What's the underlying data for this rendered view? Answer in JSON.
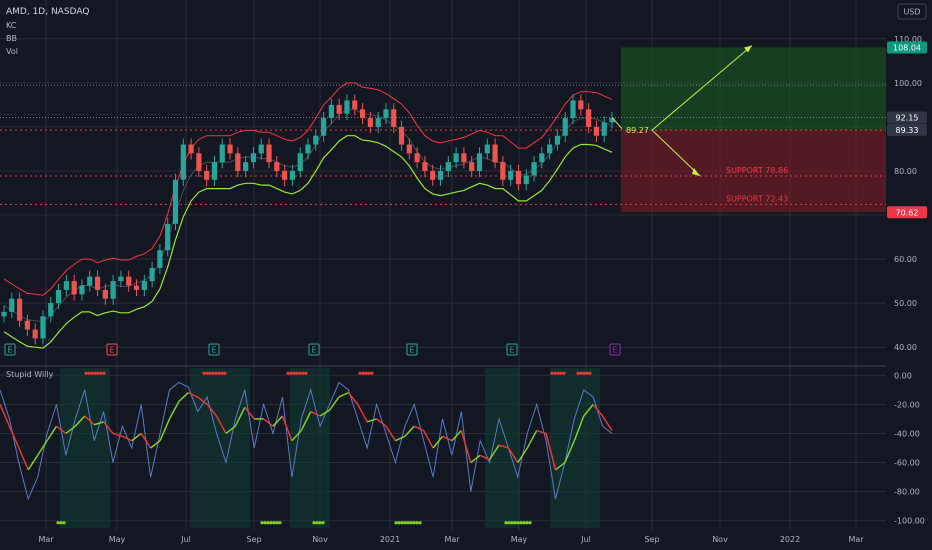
{
  "header": {
    "symbol_line": "AMD, 1D, NASDAQ",
    "indicators": [
      "KC",
      "BB",
      "Vol"
    ],
    "currency_button": "USD"
  },
  "oscillator": {
    "title": "Stupid Willy"
  },
  "colors": {
    "background": "#131722",
    "grid": "#2a2e39",
    "candle_up": "#26a69a",
    "candle_down": "#ef5350",
    "upper_band": "#f23645",
    "lower_band": "#9ae62b",
    "level_line": "#f23645",
    "profit_zone": "#1b5e20",
    "loss_zone": "#7f1d25",
    "arrow": "#c8f03c",
    "wr_line": "#5b7ac7",
    "signal_green": "#7ed321",
    "signal_red": "#e53935"
  },
  "chart_data": [
    {
      "type": "candlestick",
      "x_axis_labels": [
        "Mar",
        "May",
        "Jul",
        "Sep",
        "Nov",
        "2021",
        "Mar",
        "May",
        "Jul",
        "Sep",
        "Nov",
        "2022",
        "Mar"
      ],
      "ylim": [
        38,
        112
      ],
      "y_ticks": [
        40.0,
        50.0,
        60.0,
        70.0,
        80.0,
        90.0,
        100.0,
        110.0
      ],
      "y_tick_labels": [
        "40.00",
        "50.00",
        "60.00",
        "70.00",
        "80.00",
        "90.00",
        "100.00",
        "110.00"
      ],
      "close_series": [
        48,
        51,
        46,
        44,
        42,
        47,
        50,
        53,
        55,
        52,
        54,
        56,
        53,
        51,
        55,
        56,
        54,
        53,
        55,
        58,
        62,
        68,
        78,
        86,
        84,
        80,
        78,
        82,
        86,
        84,
        80,
        82,
        84,
        86,
        82,
        80,
        78,
        80,
        84,
        86,
        88,
        92,
        95,
        93,
        96,
        94,
        92,
        90,
        92,
        94,
        90,
        86,
        84,
        82,
        80,
        78,
        80,
        82,
        84,
        82,
        80,
        84,
        86,
        82,
        78,
        80,
        77,
        79,
        82,
        84,
        86,
        88,
        92,
        96,
        94,
        90,
        88,
        91,
        92
      ],
      "price_labels": [
        {
          "text": "108.04",
          "value": 108.04,
          "color": "#089981"
        },
        {
          "text": "92.15",
          "value": 92.15,
          "color": "#2f3646"
        },
        {
          "text": "89.33",
          "value": 89.33,
          "color": "#2f3646"
        },
        {
          "text": "70.62",
          "value": 70.62,
          "color": "#f23645"
        }
      ],
      "levels": [
        89.27,
        78.86,
        72.43
      ],
      "annotations": [
        {
          "text": "89.27",
          "value": 89.27,
          "color": "#c8f03c"
        },
        {
          "text": "SUPPORT 78.86",
          "value": 78.86,
          "color": "#f23645"
        },
        {
          "text": "SUPPORT 72.43",
          "value": 72.43,
          "color": "#f23645"
        }
      ],
      "earnings_markers": [
        "E",
        "E",
        "E",
        "E",
        "E",
        "E",
        "E"
      ],
      "position_zone": {
        "entry": 89.27,
        "target": 108.04,
        "stop": 70.62
      }
    },
    {
      "type": "line",
      "title": "Stupid Willy",
      "ylim": [
        -105,
        5
      ],
      "y_ticks": [
        0,
        -20,
        -40,
        -60,
        -80,
        -100
      ],
      "y_tick_labels": [
        "0.00",
        "-20.00",
        "-40.00",
        "-60.00",
        "-80.00",
        "-100.00"
      ],
      "series": [
        {
          "values": [
            -10,
            -30,
            -60,
            -85,
            -70,
            -40,
            -20,
            -55,
            -30,
            -10,
            -45,
            -25,
            -60,
            -35,
            -50,
            -20,
            -70,
            -40,
            -10,
            -5,
            -8,
            -25,
            -15,
            -40,
            -60,
            -30,
            -10,
            -50,
            -20,
            -40,
            -15,
            -70,
            -30,
            -10,
            -35,
            -20,
            -5,
            -10,
            -30,
            -50,
            -20,
            -40,
            -60,
            -35,
            -20,
            -45,
            -70,
            -30,
            -55,
            -25,
            -80,
            -45,
            -60,
            -30,
            -50,
            -70,
            -40,
            -20,
            -45,
            -85,
            -60,
            -30,
            -10,
            -15,
            -35,
            -40
          ]
        },
        {
          "values": [
            -20,
            -35,
            -50,
            -65,
            -55,
            -45,
            -35,
            -40,
            -35,
            -28,
            -34,
            -32,
            -40,
            -42,
            -45,
            -40,
            -50,
            -45,
            -30,
            -18,
            -12,
            -15,
            -20,
            -28,
            -40,
            -35,
            -22,
            -30,
            -30,
            -35,
            -28,
            -45,
            -38,
            -25,
            -28,
            -24,
            -15,
            -12,
            -20,
            -32,
            -30,
            -35,
            -45,
            -42,
            -35,
            -38,
            -50,
            -42,
            -45,
            -38,
            -60,
            -55,
            -58,
            -48,
            -50,
            -60,
            -50,
            -38,
            -40,
            -65,
            -60,
            -45,
            -28,
            -20,
            -28,
            -38
          ]
        }
      ]
    }
  ]
}
